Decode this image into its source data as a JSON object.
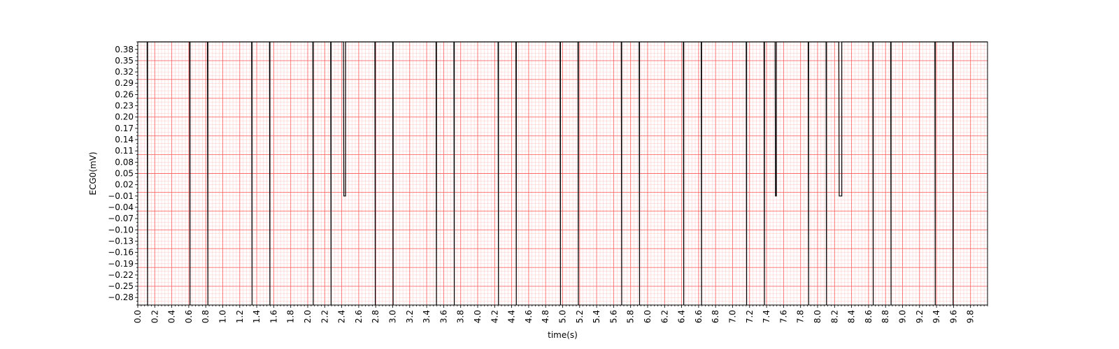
{
  "chart_data": {
    "type": "line",
    "title": "",
    "xlabel": "time(s)",
    "ylabel": "ECG0(mV)",
    "xlim": [
      0.0,
      10.0
    ],
    "ylim": [
      -0.3,
      0.4
    ],
    "grid": true,
    "colors": {
      "grid_major": "#ff6b6b",
      "grid_minor": "#ffc7c7",
      "trace": "#000000",
      "background": "#ffffff"
    },
    "x_ticks": [
      "0.0",
      "0.2",
      "0.4",
      "0.6",
      "0.8",
      "1.0",
      "1.2",
      "1.4",
      "1.6",
      "1.8",
      "2.0",
      "2.2",
      "2.4",
      "2.6",
      "2.8",
      "3.0",
      "3.2",
      "3.4",
      "3.6",
      "3.8",
      "4.0",
      "4.2",
      "4.4",
      "4.6",
      "4.8",
      "5.0",
      "5.2",
      "5.4",
      "5.6",
      "5.8",
      "6.0",
      "6.2",
      "6.4",
      "6.6",
      "6.8",
      "7.0",
      "7.2",
      "7.4",
      "7.6",
      "7.8",
      "8.0",
      "8.2",
      "8.4",
      "8.6",
      "8.8",
      "9.0",
      "9.2",
      "9.4",
      "9.6",
      "9.8"
    ],
    "y_ticks": [
      "0.38",
      "0.35",
      "0.32",
      "0.29",
      "0.26",
      "0.23",
      "0.20",
      "0.17",
      "0.14",
      "0.11",
      "0.08",
      "0.05",
      "0.02",
      "−0.01",
      "−0.04",
      "−0.07",
      "−0.10",
      "−0.13",
      "−0.16",
      "−0.19",
      "−0.22",
      "−0.25",
      "−0.28"
    ],
    "series": [
      {
        "x": [
          0.0,
          0.11,
          0.115,
          0.115,
          0.61,
          0.615,
          0.615,
          0.82,
          0.825,
          0.825,
          1.34,
          1.345,
          1.345,
          1.55,
          1.555,
          1.555,
          2.06,
          2.065,
          2.065,
          2.27,
          2.275,
          2.275,
          2.42,
          2.425,
          2.425,
          2.44,
          2.445,
          2.445,
          2.79,
          2.795,
          2.795,
          3.0,
          3.005,
          3.005,
          3.51,
          3.515,
          3.515,
          3.72,
          3.725,
          3.725,
          4.24,
          4.245,
          4.245,
          4.45,
          4.455,
          4.455,
          4.97,
          4.975,
          4.975,
          5.18,
          5.185,
          5.185,
          5.69,
          5.695,
          5.695,
          5.9,
          5.905,
          5.905,
          6.42,
          6.425,
          6.425,
          6.63,
          6.635,
          6.635,
          7.16,
          7.165,
          7.165,
          7.37,
          7.375,
          7.375,
          7.5,
          7.505,
          7.505,
          7.51,
          7.515,
          7.515,
          7.89,
          7.895,
          7.895,
          8.1,
          8.105,
          8.105,
          8.25,
          8.255,
          8.255,
          8.28,
          8.285,
          8.285,
          8.65,
          8.655,
          8.655,
          8.86,
          8.865,
          8.865,
          9.38,
          9.385,
          9.385,
          9.59,
          9.595,
          9.595,
          10.0
        ],
        "y": [
          0.4,
          0.4,
          -0.3,
          0.4,
          0.4,
          -0.3,
          0.4,
          0.4,
          -0.3,
          0.4,
          0.4,
          -0.3,
          0.4,
          0.4,
          -0.3,
          0.4,
          0.4,
          -0.3,
          0.4,
          0.4,
          -0.3,
          0.4,
          0.4,
          -0.01,
          -0.01,
          -0.01,
          -0.01,
          0.4,
          0.4,
          -0.3,
          0.4,
          0.4,
          -0.3,
          0.4,
          0.4,
          -0.3,
          0.4,
          0.4,
          -0.3,
          0.4,
          0.4,
          -0.3,
          0.4,
          0.4,
          -0.3,
          0.4,
          0.4,
          -0.3,
          0.4,
          0.4,
          -0.3,
          0.4,
          0.4,
          -0.3,
          0.4,
          0.4,
          -0.3,
          0.4,
          0.4,
          -0.3,
          0.4,
          0.4,
          -0.3,
          0.4,
          0.4,
          -0.3,
          0.4,
          0.4,
          -0.3,
          0.4,
          0.4,
          -0.01,
          -0.01,
          -0.01,
          -0.01,
          0.4,
          0.4,
          -0.3,
          0.4,
          0.4,
          -0.3,
          0.4,
          0.4,
          -0.01,
          -0.01,
          -0.01,
          -0.01,
          0.4,
          0.4,
          -0.3,
          0.4,
          0.4,
          -0.3,
          0.4,
          0.4,
          -0.3,
          0.4,
          0.4,
          -0.3,
          0.4,
          0.4
        ]
      }
    ]
  }
}
